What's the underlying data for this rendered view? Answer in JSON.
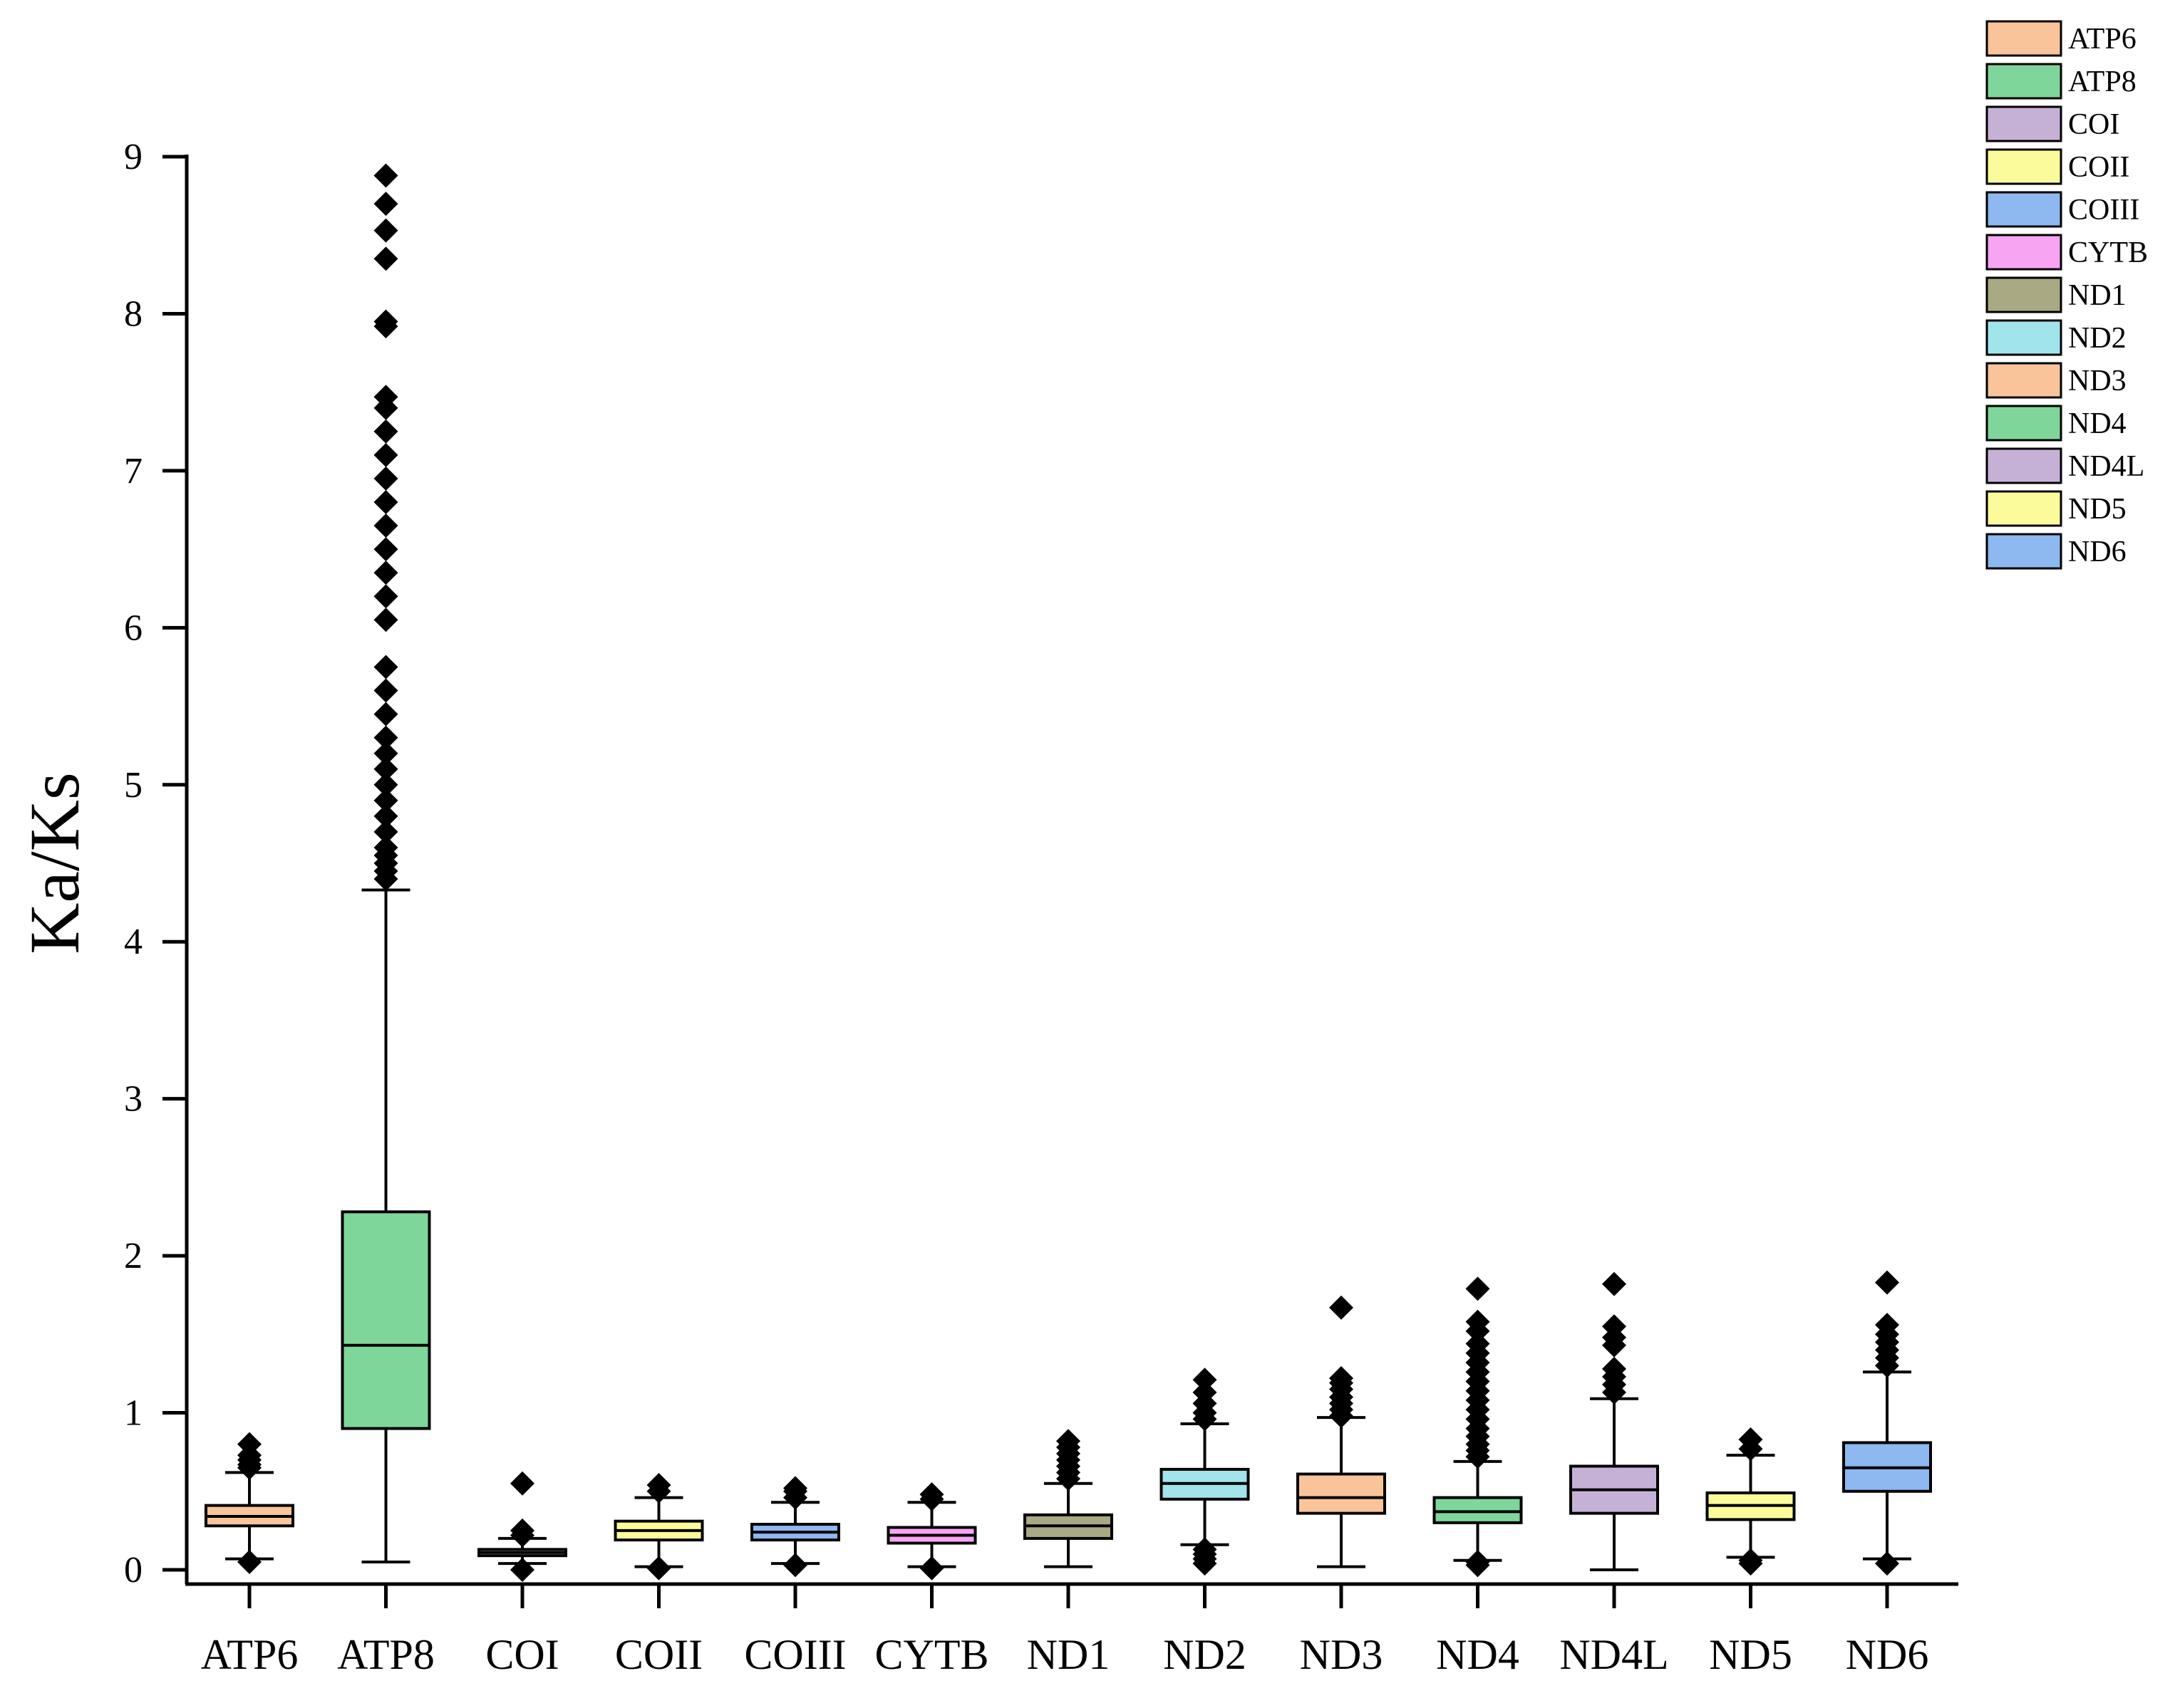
{
  "chart_data": {
    "type": "box",
    "title": "",
    "xlabel": "",
    "ylabel": "Ka/Ks",
    "ylim": [
      0,
      9
    ],
    "yticks": [
      0,
      1,
      2,
      3,
      4,
      5,
      6,
      7,
      8,
      9
    ],
    "grid": false,
    "legend_position": "top-right",
    "categories": [
      "ATP6",
      "ATP8",
      "COI",
      "COII",
      "COIII",
      "CYTB",
      "ND1",
      "ND2",
      "ND3",
      "ND4",
      "ND4L",
      "ND5",
      "ND6"
    ],
    "colors": [
      "#F9C49A",
      "#7FD69B",
      "#C6B1D6",
      "#FBFB9B",
      "#8DB8F0",
      "#F7A5F3",
      "#A9A983",
      "#A2E4EC",
      "#F9C49A",
      "#7FD69B",
      "#C6B1D6",
      "#FBFB9B",
      "#8DB8F0"
    ],
    "series": [
      {
        "name": "ATP6",
        "whisker_low": 0.07,
        "q1": 0.28,
        "median": 0.34,
        "q3": 0.41,
        "whisker_high": 0.62,
        "outliers": [
          0.05,
          0.65,
          0.67,
          0.7,
          0.73,
          0.8
        ]
      },
      {
        "name": "ATP8",
        "whisker_low": 0.05,
        "q1": 0.9,
        "median": 1.43,
        "q3": 2.28,
        "whisker_high": 4.33,
        "outliers": [
          4.4,
          4.45,
          4.5,
          4.55,
          4.6,
          4.7,
          4.8,
          4.9,
          5.0,
          5.1,
          5.2,
          5.3,
          5.45,
          5.6,
          5.75,
          6.05,
          6.2,
          6.35,
          6.5,
          6.65,
          6.8,
          6.95,
          7.1,
          7.25,
          7.4,
          7.47,
          7.92,
          7.95,
          8.35,
          8.53,
          8.7,
          8.88
        ]
      },
      {
        "name": "COI",
        "whisker_low": 0.04,
        "q1": 0.09,
        "median": 0.11,
        "q3": 0.13,
        "whisker_high": 0.2,
        "outliers": [
          0.0,
          0.22,
          0.25,
          0.55
        ]
      },
      {
        "name": "COII",
        "whisker_low": 0.02,
        "q1": 0.19,
        "median": 0.25,
        "q3": 0.31,
        "whisker_high": 0.46,
        "outliers": [
          0.01,
          0.5,
          0.54
        ]
      },
      {
        "name": "COIII",
        "whisker_low": 0.04,
        "q1": 0.19,
        "median": 0.24,
        "q3": 0.29,
        "whisker_high": 0.43,
        "outliers": [
          0.03,
          0.46,
          0.5,
          0.52
        ]
      },
      {
        "name": "CYTB",
        "whisker_low": 0.02,
        "q1": 0.17,
        "median": 0.22,
        "q3": 0.27,
        "whisker_high": 0.43,
        "outliers": [
          0.01,
          0.45,
          0.48
        ]
      },
      {
        "name": "ND1",
        "whisker_low": 0.02,
        "q1": 0.2,
        "median": 0.28,
        "q3": 0.35,
        "whisker_high": 0.55,
        "outliers": [
          0.58,
          0.62,
          0.66,
          0.7,
          0.74,
          0.78,
          0.82
        ]
      },
      {
        "name": "ND2",
        "whisker_low": 0.16,
        "q1": 0.45,
        "median": 0.55,
        "q3": 0.64,
        "whisker_high": 0.93,
        "outliers": [
          0.04,
          0.07,
          0.1,
          0.13,
          0.96,
          1.0,
          1.06,
          1.13,
          1.21
        ]
      },
      {
        "name": "ND3",
        "whisker_low": 0.02,
        "q1": 0.36,
        "median": 0.46,
        "q3": 0.61,
        "whisker_high": 0.97,
        "outliers": [
          0.98,
          1.02,
          1.06,
          1.1,
          1.15,
          1.19,
          1.22,
          1.67
        ]
      },
      {
        "name": "ND4",
        "whisker_low": 0.06,
        "q1": 0.3,
        "median": 0.37,
        "q3": 0.46,
        "whisker_high": 0.69,
        "outliers": [
          0.03,
          0.05,
          0.72,
          0.76,
          0.8,
          0.85,
          0.9,
          0.96,
          1.02,
          1.08,
          1.14,
          1.2,
          1.26,
          1.32,
          1.38,
          1.44,
          1.52,
          1.58,
          1.79
        ]
      },
      {
        "name": "ND4L",
        "whisker_low": 0.0,
        "q1": 0.36,
        "median": 0.51,
        "q3": 0.66,
        "whisker_high": 1.09,
        "outliers": [
          1.13,
          1.18,
          1.23,
          1.28,
          1.43,
          1.48,
          1.55,
          1.82
        ]
      },
      {
        "name": "ND5",
        "whisker_low": 0.08,
        "q1": 0.32,
        "median": 0.41,
        "q3": 0.49,
        "whisker_high": 0.73,
        "outliers": [
          0.04,
          0.06,
          0.77,
          0.83
        ]
      },
      {
        "name": "ND6",
        "whisker_low": 0.07,
        "q1": 0.5,
        "median": 0.65,
        "q3": 0.81,
        "whisker_high": 1.26,
        "outliers": [
          0.04,
          1.3,
          1.35,
          1.4,
          1.45,
          1.5,
          1.56,
          1.83
        ]
      }
    ]
  }
}
